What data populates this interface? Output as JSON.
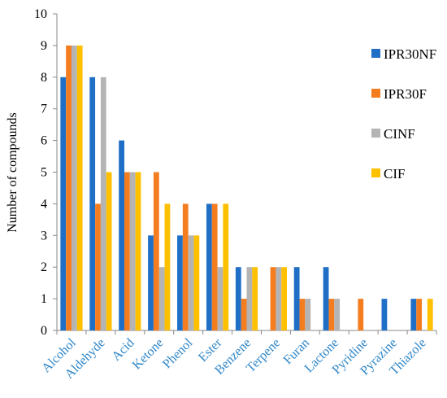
{
  "chart_data": {
    "type": "bar",
    "title": "",
    "xlabel": "",
    "ylabel": "Number of compounds",
    "ylim": [
      0,
      10
    ],
    "yticks": [
      "0",
      "1",
      "2",
      "3",
      "4",
      "5",
      "6",
      "7",
      "8",
      "9",
      "10"
    ],
    "grid": false,
    "legend_position": "right",
    "categories": [
      "Alcohol",
      "Aldehyde",
      "Acid",
      "Ketone",
      "Phenol",
      "Ester",
      "Benzene",
      "Terpene",
      "Furan",
      "Lactone",
      "Pyridine",
      "Pyrazine",
      "Thiazole"
    ],
    "series": [
      {
        "name": "IPR30NF",
        "color": "#1f6fc7",
        "values": [
          8,
          8,
          6,
          3,
          3,
          4,
          2,
          0,
          2,
          2,
          0,
          1,
          1
        ]
      },
      {
        "name": "IPR30F",
        "color": "#f47d20",
        "values": [
          9,
          4,
          5,
          5,
          4,
          4,
          1,
          2,
          1,
          1,
          1,
          0,
          1
        ]
      },
      {
        "name": "CINF",
        "color": "#b4b4b4",
        "values": [
          9,
          8,
          5,
          2,
          3,
          2,
          2,
          2,
          1,
          1,
          0,
          0,
          0
        ]
      },
      {
        "name": "CIF",
        "color": "#ffc000",
        "values": [
          9,
          5,
          5,
          4,
          3,
          4,
          2,
          2,
          0,
          0,
          0,
          0,
          1
        ]
      }
    ],
    "category_label_color": "#2e86c8",
    "axis_color": "#888888"
  }
}
